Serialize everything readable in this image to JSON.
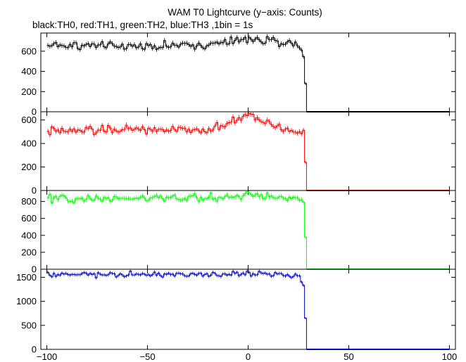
{
  "chart_data": {
    "type": "line",
    "title": "WAM T0 Lightcurve (y−axis: Counts)",
    "subtitle": "black:TH0, red:TH1, green:TH2, blue:TH3 ,1bin = 1s",
    "xlabel": "",
    "ylabel": "",
    "xlim": [
      -103,
      103
    ],
    "x_ticks": [
      "−100",
      "−50",
      "0",
      "50",
      "100"
    ],
    "x_tick_values": [
      -100,
      -50,
      0,
      50,
      100
    ],
    "grid": false,
    "panels": [
      {
        "series_color": "#000000",
        "ylim": [
          0,
          780
        ],
        "y_ticks": [
          0,
          200,
          400,
          600
        ],
        "key_points": {
          "x": [
            -100,
            -60,
            -20,
            0,
            25,
            28,
            29,
            100
          ],
          "y": [
            660,
            650,
            660,
            720,
            670,
            560,
            0,
            0
          ]
        }
      },
      {
        "series_color": "#ff0000",
        "ylim": [
          0,
          670
        ],
        "y_ticks": [
          0,
          200,
          400,
          600
        ],
        "key_points": {
          "x": [
            -100,
            -60,
            -20,
            0,
            25,
            28,
            29,
            100
          ],
          "y": [
            500,
            520,
            510,
            640,
            490,
            480,
            0,
            0
          ]
        }
      },
      {
        "series_color": "#00ff00",
        "ylim": [
          0,
          930
        ],
        "y_ticks": [
          0,
          200,
          400,
          600,
          800
        ],
        "key_points": {
          "x": [
            -100,
            -60,
            -20,
            0,
            25,
            28,
            29,
            100
          ],
          "y": [
            830,
            840,
            840,
            880,
            830,
            760,
            0,
            0
          ]
        }
      },
      {
        "series_color": "#0000cc",
        "ylim": [
          0,
          1670
        ],
        "y_ticks": [
          0,
          500,
          1000,
          1500
        ],
        "key_points": {
          "x": [
            -100,
            -60,
            -20,
            0,
            25,
            28,
            29,
            100
          ],
          "y": [
            1550,
            1560,
            1560,
            1580,
            1530,
            1300,
            0,
            0
          ]
        }
      }
    ]
  }
}
